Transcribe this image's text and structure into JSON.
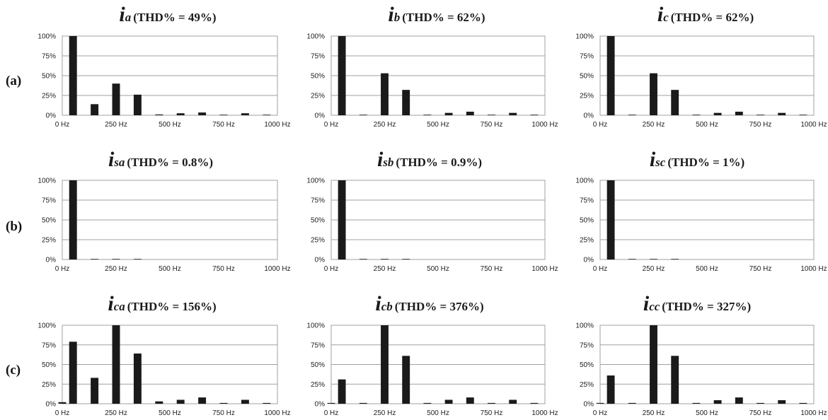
{
  "row_labels": [
    "(a)",
    "(b)",
    "(c)"
  ],
  "y_ticks": [
    "0%",
    "25%",
    "50%",
    "75%",
    "100%"
  ],
  "x_ticks": [
    "0 Hz",
    "250 Hz",
    "500 Hz",
    "750 Hz",
    "1000 Hz"
  ],
  "colors": {
    "bar": "#1a1a1a",
    "grid": "#a0a0a0",
    "axis": "#333333"
  },
  "chart_data": [
    {
      "type": "bar",
      "row": "(a)",
      "symbol": "i",
      "subscript": "a",
      "thd": "(THD% = 49%)",
      "x_unit": "Hz",
      "x": [
        0,
        50,
        150,
        250,
        350,
        450,
        550,
        650,
        750,
        850,
        950
      ],
      "values": [
        0,
        100,
        14,
        40,
        26,
        1,
        2.5,
        3.5,
        0.5,
        2.5,
        0.5
      ],
      "ylim": [
        0,
        100
      ],
      "xlim": [
        0,
        1000
      ],
      "grid": true
    },
    {
      "type": "bar",
      "row": "(a)",
      "symbol": "i",
      "subscript": "b",
      "thd": "(THD% = 62%)",
      "x_unit": "Hz",
      "x": [
        0,
        50,
        150,
        250,
        350,
        450,
        550,
        650,
        750,
        850,
        950
      ],
      "values": [
        0,
        100,
        0.5,
        53,
        32,
        0.5,
        3,
        4.5,
        0.5,
        3,
        0.5
      ],
      "ylim": [
        0,
        100
      ],
      "xlim": [
        0,
        1000
      ],
      "grid": true
    },
    {
      "type": "bar",
      "row": "(a)",
      "symbol": "i",
      "subscript": "c",
      "thd": "(THD% = 62%)",
      "x_unit": "Hz",
      "x": [
        0,
        50,
        150,
        250,
        350,
        450,
        550,
        650,
        750,
        850,
        950
      ],
      "values": [
        0,
        100,
        0.5,
        53,
        32,
        0.5,
        3,
        4.5,
        0.5,
        3,
        0.5
      ],
      "ylim": [
        0,
        100
      ],
      "xlim": [
        0,
        1000
      ],
      "grid": true
    },
    {
      "type": "bar",
      "row": "(b)",
      "symbol": "i",
      "subscript": "sa",
      "thd": "(THD% = 0.8%)",
      "x_unit": "Hz",
      "x": [
        0,
        50,
        150,
        250,
        350,
        450,
        550,
        650,
        750,
        850,
        950
      ],
      "values": [
        0,
        100,
        0.4,
        0.4,
        0.4,
        0,
        0,
        0,
        0,
        0,
        0
      ],
      "ylim": [
        0,
        100
      ],
      "xlim": [
        0,
        1000
      ],
      "grid": true
    },
    {
      "type": "bar",
      "row": "(b)",
      "symbol": "i",
      "subscript": "sb",
      "thd": "(THD% = 0.9%)",
      "x_unit": "Hz",
      "x": [
        0,
        50,
        150,
        250,
        350,
        450,
        550,
        650,
        750,
        850,
        950
      ],
      "values": [
        0,
        100,
        0.4,
        0.4,
        0.4,
        0,
        0,
        0,
        0,
        0,
        0
      ],
      "ylim": [
        0,
        100
      ],
      "xlim": [
        0,
        1000
      ],
      "grid": true
    },
    {
      "type": "bar",
      "row": "(b)",
      "symbol": "i",
      "subscript": "sc",
      "thd": "(THD% = 1%)",
      "x_unit": "Hz",
      "x": [
        0,
        50,
        150,
        250,
        350,
        450,
        550,
        650,
        750,
        850,
        950
      ],
      "values": [
        0,
        100,
        0.4,
        0.4,
        0.4,
        0,
        0,
        0,
        0,
        0,
        0
      ],
      "ylim": [
        0,
        100
      ],
      "xlim": [
        0,
        1000
      ],
      "grid": true
    },
    {
      "type": "bar",
      "row": "(c)",
      "symbol": "i",
      "subscript": "ca",
      "thd": "(THD% = 156%)",
      "x_unit": "Hz",
      "x": [
        0,
        50,
        150,
        250,
        350,
        450,
        550,
        650,
        750,
        850,
        950
      ],
      "values": [
        2,
        79,
        33,
        100,
        64,
        3,
        5,
        8,
        1,
        5,
        1
      ],
      "ylim": [
        0,
        100
      ],
      "xlim": [
        0,
        1000
      ],
      "grid": true
    },
    {
      "type": "bar",
      "row": "(c)",
      "symbol": "i",
      "subscript": "cb",
      "thd": "(THD% = 376%)",
      "x_unit": "Hz",
      "x": [
        0,
        50,
        150,
        250,
        350,
        450,
        550,
        650,
        750,
        850,
        950
      ],
      "values": [
        1,
        31,
        1,
        100,
        61,
        1,
        5,
        8,
        1,
        5,
        1
      ],
      "ylim": [
        0,
        100
      ],
      "xlim": [
        0,
        1000
      ],
      "grid": true
    },
    {
      "type": "bar",
      "row": "(c)",
      "symbol": "i",
      "subscript": "cc",
      "thd": "(THD% = 327%)",
      "x_unit": "Hz",
      "x": [
        0,
        50,
        150,
        250,
        350,
        450,
        550,
        650,
        750,
        850,
        950
      ],
      "values": [
        1,
        36,
        1,
        100,
        61,
        1,
        4.5,
        8,
        1,
        4.5,
        1
      ],
      "ylim": [
        0,
        100
      ],
      "xlim": [
        0,
        1000
      ],
      "grid": true
    }
  ]
}
